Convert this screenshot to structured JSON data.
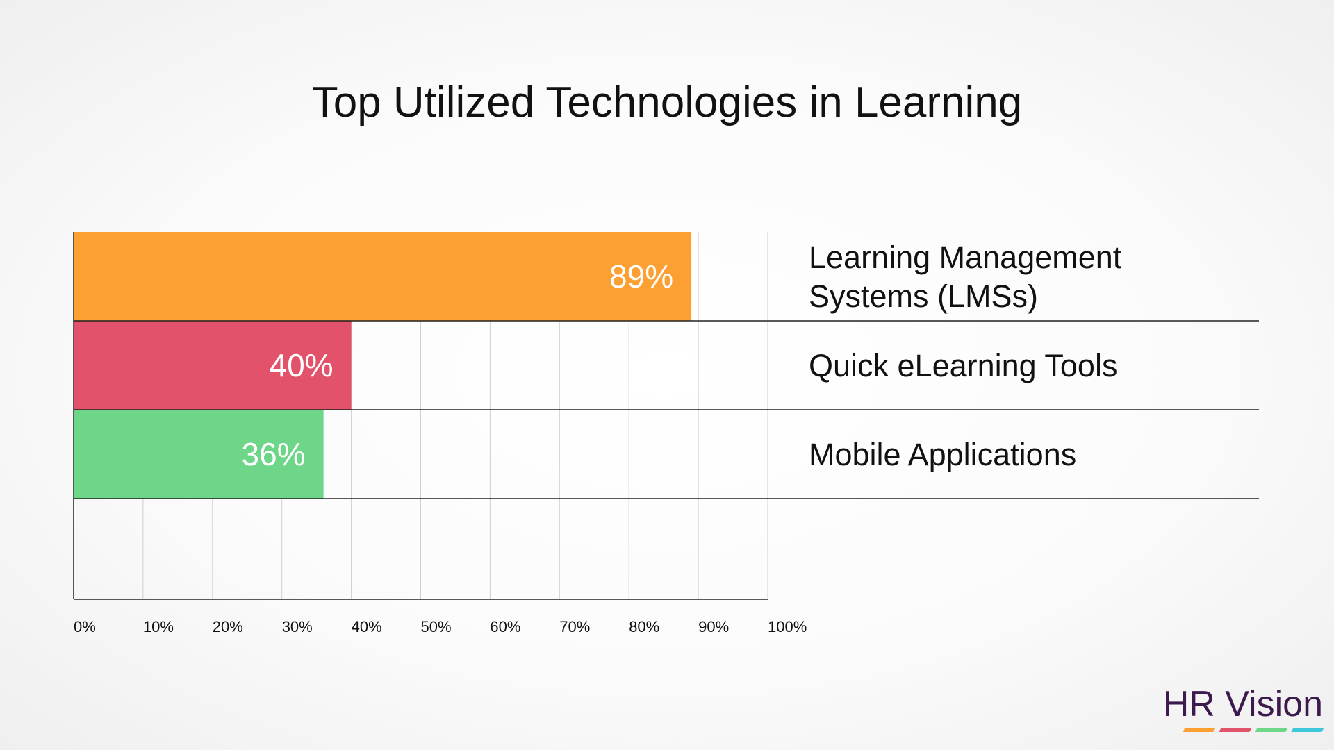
{
  "chart_data": {
    "type": "bar",
    "orientation": "horizontal",
    "title": "Top Utilized Technologies in Learning",
    "categories": [
      [
        "Learning Management",
        "Systems (LMSs)"
      ],
      [
        "Quick eLearning Tools"
      ],
      [
        "Mobile Applications"
      ]
    ],
    "values": [
      89,
      40,
      36
    ],
    "value_labels": [
      "89%",
      "40%",
      "36%"
    ],
    "bar_colors": [
      "#fca033",
      "#e2526a",
      "#6ed688"
    ],
    "xlim": [
      0,
      100
    ],
    "x_ticks": [
      0,
      10,
      20,
      30,
      40,
      50,
      60,
      70,
      80,
      90,
      100
    ],
    "x_tick_labels": [
      "0%",
      "10%",
      "20%",
      "30%",
      "40%",
      "50%",
      "60%",
      "70%",
      "80%",
      "90%",
      "100%"
    ],
    "grid": true,
    "legend": "none"
  },
  "brand": {
    "name": "HR Vision",
    "text_color": "#3d1a4d",
    "stripe_colors": [
      "#fca033",
      "#e2526a",
      "#6ed688",
      "#3cc8d8"
    ]
  }
}
